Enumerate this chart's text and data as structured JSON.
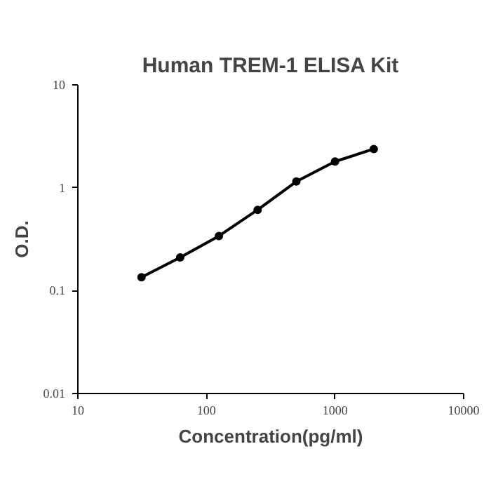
{
  "chart_data": {
    "type": "line",
    "title": "Human TREM-1 ELISA Kit",
    "xlabel": "Concentration(pg/ml)",
    "ylabel": "O.D.",
    "x": [
      31.25,
      62.5,
      125,
      250,
      500,
      1000,
      2000
    ],
    "series": [
      {
        "color": "#000000",
        "values": [
          0.135,
          0.21,
          0.34,
          0.61,
          1.15,
          1.8,
          2.38
        ]
      }
    ],
    "log": "xy",
    "xlim": [
      10,
      10000
    ],
    "ylim": [
      0.01,
      10
    ],
    "xticks": [
      10,
      100,
      1000,
      10000
    ],
    "yticks": [
      0.01,
      0.1,
      1,
      10
    ],
    "grid": false,
    "marker": "circle",
    "line_style": "solid"
  }
}
